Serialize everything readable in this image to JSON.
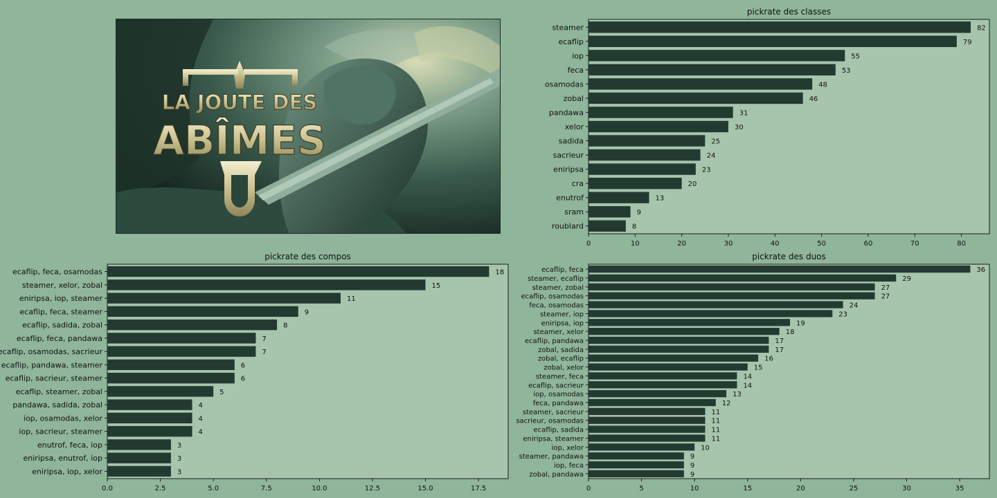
{
  "banner": {
    "logo_line1": "LA JOUTE DES",
    "logo_line2": "ABÎMES"
  },
  "colors": {
    "page_background": "#8fb59a",
    "plot_background": "#a7c5ad",
    "bar": "#233a31"
  },
  "chart_data": [
    {
      "id": "classes",
      "type": "bar",
      "orientation": "horizontal",
      "title": "pickrate des classes",
      "xlabel": "",
      "ylabel": "",
      "categories": [
        "steamer",
        "ecaflip",
        "iop",
        "feca",
        "osamodas",
        "zobal",
        "pandawa",
        "xelor",
        "sadida",
        "sacrieur",
        "eniripsa",
        "cra",
        "enutrof",
        "sram",
        "roublard"
      ],
      "values": [
        82,
        79,
        55,
        53,
        48,
        46,
        31,
        30,
        25,
        24,
        23,
        20,
        13,
        9,
        8
      ],
      "xlim": [
        0,
        86
      ],
      "xticks": [
        0,
        10,
        20,
        30,
        40,
        50,
        60,
        70,
        80
      ],
      "xtick_labels": [
        "0",
        "10",
        "20",
        "30",
        "40",
        "50",
        "60",
        "70",
        "80"
      ],
      "grid": false,
      "data_labels": true
    },
    {
      "id": "compos",
      "type": "bar",
      "orientation": "horizontal",
      "title": "pickrate des compos",
      "xlabel": "",
      "ylabel": "",
      "categories": [
        "ecaflip, feca, osamodas",
        "steamer, xelor, zobal",
        "eniripsa, iop, steamer",
        "ecaflip, feca, steamer",
        "ecaflip, sadida, zobal",
        "ecaflip, feca, pandawa",
        "ecaflip, osamodas, sacrieur",
        "ecaflip, pandawa, steamer",
        "ecaflip, sacrieur, steamer",
        "ecaflip, steamer, zobal",
        "pandawa, sadida, zobal",
        "iop, osamodas, xelor",
        "iop, sacrieur, steamer",
        "enutrof, feca, iop",
        "eniripsa, enutrof, iop",
        "eniripsa, iop, xelor"
      ],
      "values": [
        18,
        15,
        11,
        9,
        8,
        7,
        7,
        6,
        6,
        5,
        4,
        4,
        4,
        3,
        3,
        3
      ],
      "xlim": [
        0,
        18.9
      ],
      "xticks": [
        0,
        2.5,
        5,
        7.5,
        10,
        12.5,
        15,
        17.5
      ],
      "xtick_labels": [
        "0.0",
        "2.5",
        "5.0",
        "7.5",
        "10.0",
        "12.5",
        "15.0",
        "17.5"
      ],
      "grid": false,
      "data_labels": true
    },
    {
      "id": "duos",
      "type": "bar",
      "orientation": "horizontal",
      "title": "pickrate des duos",
      "xlabel": "",
      "ylabel": "",
      "categories": [
        "ecaflip, feca",
        "steamer, ecaflip",
        "steamer, zobal",
        "ecaflip, osamodas",
        "feca, osamodas",
        "steamer, iop",
        "eniripsa, iop",
        "steamer, xelor",
        "ecaflip, pandawa",
        "zobal, sadida",
        "zobal, ecaflip",
        "zobal, xelor",
        "steamer, feca",
        "ecaflip, sacrieur",
        "iop, osamodas",
        "feca, pandawa",
        "steamer, sacrieur",
        "sacrieur, osamodas",
        "ecaflip, sadida",
        "eniripsa, steamer",
        "iop, xelor",
        "steamer, pandawa",
        "iop, feca",
        "zobal, pandawa"
      ],
      "values": [
        36,
        29,
        27,
        27,
        24,
        23,
        19,
        18,
        17,
        17,
        16,
        15,
        14,
        14,
        13,
        12,
        11,
        11,
        11,
        11,
        10,
        9,
        9,
        9
      ],
      "xlim": [
        0,
        37.8
      ],
      "xticks": [
        0,
        5,
        10,
        15,
        20,
        25,
        30,
        35
      ],
      "xtick_labels": [
        "0",
        "5",
        "10",
        "15",
        "20",
        "25",
        "30",
        "35"
      ],
      "grid": false,
      "data_labels": true
    }
  ]
}
